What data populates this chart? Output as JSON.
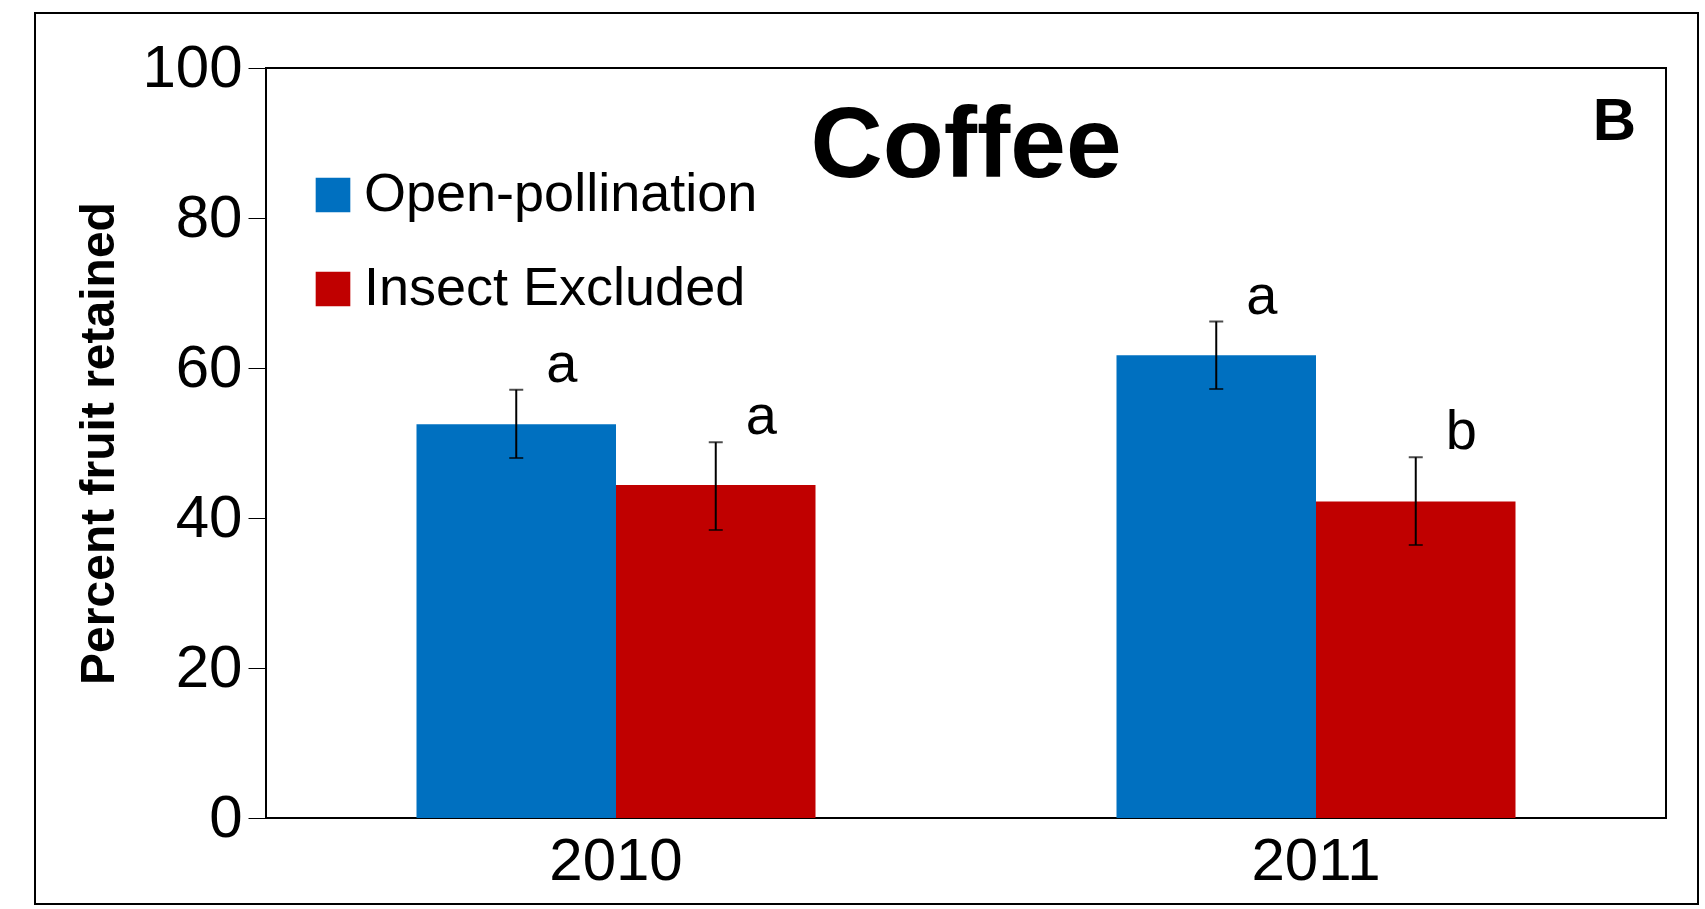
{
  "chart_data": {
    "type": "bar",
    "title": "Coffee",
    "ylabel": "Percent fruit retained",
    "categories": [
      "2010",
      "2011"
    ],
    "series": [
      {
        "name": "Open-pollination",
        "color": "#0070c0",
        "values": [
          52.5,
          61.7
        ],
        "errors": [
          [
            48.0,
            57.1
          ],
          [
            57.2,
            66.2
          ]
        ],
        "value_labels": [
          "a",
          "a"
        ]
      },
      {
        "name": "Insect Excluded",
        "color": "#c00000",
        "values": [
          44.4,
          42.2
        ],
        "errors": [
          [
            38.4,
            50.1
          ],
          [
            36.4,
            48.1
          ]
        ],
        "value_labels": [
          "a",
          "b"
        ]
      }
    ],
    "ylim": [
      0,
      100
    ],
    "yticks": [
      0,
      20,
      40,
      60,
      80,
      100
    ],
    "grid": false,
    "legend": "top left",
    "annotations": [
      "B"
    ]
  }
}
